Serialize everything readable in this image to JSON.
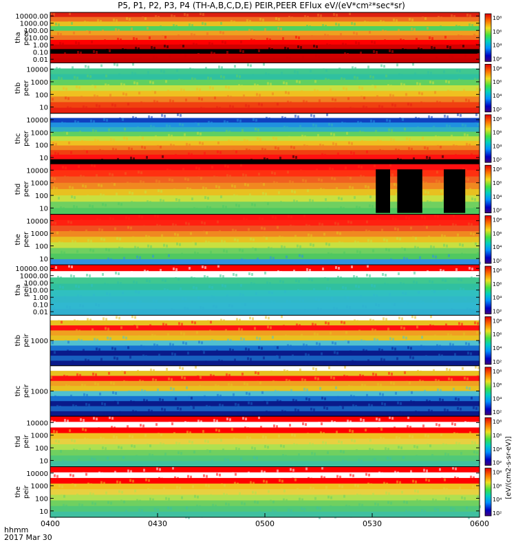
{
  "title": "P5, P1, P2, P3, P4 (TH-A,B,C,D,E) PEIR,PEER EFlux eV/(eV*cm²*sec*sr)",
  "colorbar_label": "[eV/(cm2-s-sr-eV)]",
  "colorbar_ticks": [
    "10²",
    "10⁴",
    "10⁶",
    "10⁸"
  ],
  "time_axis": {
    "ticks": [
      "0400",
      "0430",
      "0500",
      "0530",
      "0600"
    ],
    "unit_label": "hhmm",
    "date_label": "2017 Mar 30"
  },
  "chart_data": [
    {
      "type": "heatmap",
      "name": "tha peer",
      "ylabel": [
        "tha",
        "peer"
      ],
      "ylog": true,
      "yticks": [
        "10000.00",
        "1000.00",
        "100.00",
        "10.00",
        "1.00",
        "0.10",
        "0.01"
      ],
      "bands": [
        "#dd2010",
        "#f07020",
        "#e8c020",
        "#50d060",
        "#f0a020",
        "#f07020",
        "#ff0000",
        "#d00000",
        "#000000",
        "#d00000",
        "#c80000"
      ]
    },
    {
      "type": "heatmap",
      "name": "thb peer",
      "ylabel": [
        "thb",
        "peer"
      ],
      "ylog": true,
      "yticks": [
        "10000",
        "1000",
        "100",
        "10"
      ],
      "bands": [
        "#ffffff",
        "#40c890",
        "#30c0a0",
        "#60d060",
        "#c8e040",
        "#f0c020",
        "#f08020",
        "#f04010",
        "#e82010"
      ]
    },
    {
      "type": "heatmap",
      "name": "thc peer",
      "ylabel": [
        "thc",
        "peer"
      ],
      "ylog": true,
      "yticks": [
        "10000",
        "1000",
        "100",
        "10"
      ],
      "bands": [
        "#ffffff",
        "#1040c0",
        "#2090e0",
        "#30b0c0",
        "#60d060",
        "#c0e040",
        "#f0c020",
        "#f08020",
        "#f04010",
        "#ff1010",
        "#000000"
      ]
    },
    {
      "type": "heatmap",
      "name": "thd peer",
      "ylabel": [
        "thd",
        "peer"
      ],
      "ylog": true,
      "yticks": [
        "10000",
        "1000",
        "100",
        "10"
      ],
      "bands": [
        "#ff1010",
        "#ff3010",
        "#f06020",
        "#f08820",
        "#e8c020",
        "#c8e040",
        "#70d060",
        "#50c860"
      ],
      "gaps_hhmm": [
        [
          "0531",
          "0535"
        ],
        [
          "0537",
          "0544"
        ],
        [
          "0550",
          "0556"
        ]
      ]
    },
    {
      "type": "heatmap",
      "name": "the peer",
      "ylabel": [
        "the",
        "peer"
      ],
      "ylog": true,
      "yticks": [
        "10000",
        "1000",
        "100",
        "10"
      ],
      "bands": [
        "#ff1010",
        "#ff2010",
        "#f05020",
        "#f08820",
        "#e8c020",
        "#c8e040",
        "#70d060",
        "#50c860",
        "#3090e0"
      ]
    },
    {
      "type": "heatmap",
      "name": "tha peir",
      "ylabel": [
        "tha",
        "peir"
      ],
      "ylog": true,
      "yticks": [
        "10000.00",
        "1000.00",
        "100.00",
        "10.00",
        "1.00",
        "0.10",
        "0.01"
      ],
      "bands": [
        "#ff0000",
        "#ffffff",
        "#40c890",
        "#30c0a0",
        "#30c0c0",
        "#30b8c8",
        "#30b8d0",
        "#30b0d0"
      ]
    },
    {
      "type": "heatmap",
      "name": "thb peir",
      "ylabel": [
        "thb",
        "peir"
      ],
      "ylog": true,
      "yticks": [
        "1000"
      ],
      "bands": [
        "#ffffff",
        "#e8c020",
        "#ff1010",
        "#f0a020",
        "#e8c020",
        "#50c0d0",
        "#1870d0",
        "#0a1a8a",
        "#1860c0",
        "#0a1a8a"
      ]
    },
    {
      "type": "heatmap",
      "name": "thc peir",
      "ylabel": [
        "thc",
        "peir"
      ],
      "ylog": true,
      "yticks": [
        "1000"
      ],
      "bands": [
        "#ffffff",
        "#e8c020",
        "#ff1010",
        "#f0a020",
        "#e8c020",
        "#50c0d0",
        "#1870d0",
        "#0a1a8a",
        "#1860c0",
        "#0a1a8a"
      ]
    },
    {
      "type": "heatmap",
      "name": "thd peir",
      "ylabel": [
        "thd",
        "peir"
      ],
      "ylog": true,
      "yticks": [
        "10000",
        "1000",
        "100",
        "10"
      ],
      "bands": [
        "#ff0000",
        "#ffffff",
        "#ff0000",
        "#f0c020",
        "#e8d040",
        "#b0e050",
        "#70d060",
        "#50c878",
        "#40c0a0"
      ]
    },
    {
      "type": "heatmap",
      "name": "the peir",
      "ylabel": [
        "the",
        "peir"
      ],
      "ylog": true,
      "yticks": [
        "10000",
        "1000",
        "100",
        "10"
      ],
      "bands": [
        "#ff0000",
        "#ffffff",
        "#ff0000",
        "#f0c020",
        "#e8d040",
        "#b0e050",
        "#70d060",
        "#50c878",
        "#40c0a0"
      ]
    }
  ]
}
